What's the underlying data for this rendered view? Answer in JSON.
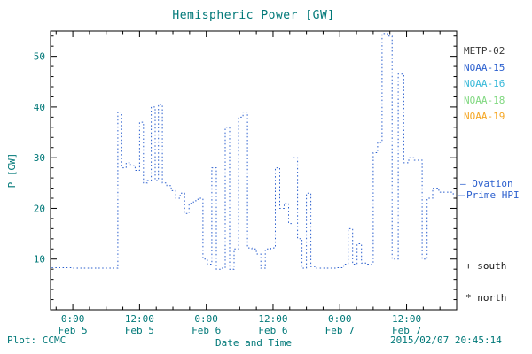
{
  "title": "Hemispheric Power [GW]",
  "colors": {
    "teal": "#007878",
    "axis": "#000000",
    "line": "#2b5fce"
  },
  "legend": [
    {
      "label": "METP-02",
      "color": "#3a3a3a"
    },
    {
      "label": "NOAA-15",
      "color": "#2b5fce"
    },
    {
      "label": "NOAA-16",
      "color": "#35b8d8"
    },
    {
      "label": "NOAA-18",
      "color": "#7fd87f"
    },
    {
      "label": "NOAA-19",
      "color": "#f5a623"
    }
  ],
  "annotations": {
    "ovation": [
      "– Ovation",
      "Prime HPI"
    ],
    "south": "+ south",
    "north": "* north"
  },
  "footer": {
    "left": "Plot: CCMC",
    "timestamp": "2015/02/07 20:45:14"
  },
  "chart_data": {
    "type": "line",
    "style": "dotted-step",
    "title": "Hemispheric Power [GW]",
    "xlabel": "Date and Time",
    "ylabel": "P [GW]",
    "xlim": [
      -4,
      69
    ],
    "ylim": [
      0,
      55
    ],
    "yticks": [
      10,
      20,
      30,
      40,
      50
    ],
    "y_minor_step": 2,
    "x_minor_step": 3,
    "xticks": [
      {
        "t": 0,
        "time": "0:00",
        "date": "Feb 5"
      },
      {
        "t": 12,
        "time": "12:00",
        "date": "Feb 5"
      },
      {
        "t": 24,
        "time": "0:00",
        "date": "Feb 6"
      },
      {
        "t": 36,
        "time": "12:00",
        "date": "Feb 6"
      },
      {
        "t": 48,
        "time": "0:00",
        "date": "Feb 7"
      },
      {
        "t": 60,
        "time": "12:00",
        "date": "Feb 7"
      }
    ],
    "series": [
      {
        "name": "Ovation Prime HPI",
        "color": "#2b5fce",
        "units_x_hours_from": "Feb 5 00:00",
        "points": [
          [
            -3.8,
            8.3
          ],
          [
            0,
            8.2
          ],
          [
            3,
            8.2
          ],
          [
            7.5,
            8.2
          ],
          [
            8.1,
            39
          ],
          [
            8.8,
            28
          ],
          [
            9.6,
            29
          ],
          [
            10.4,
            28.5
          ],
          [
            11.2,
            27.5
          ],
          [
            12.0,
            37
          ],
          [
            12.7,
            25
          ],
          [
            13.4,
            25.5
          ],
          [
            14.1,
            40
          ],
          [
            14.8,
            25.5
          ],
          [
            15.4,
            40.5
          ],
          [
            16.1,
            25
          ],
          [
            16.9,
            24.5
          ],
          [
            17.7,
            23.5
          ],
          [
            18.5,
            22
          ],
          [
            19.3,
            23
          ],
          [
            20.1,
            19
          ],
          [
            20.9,
            21
          ],
          [
            21.7,
            21.5
          ],
          [
            22.5,
            22
          ],
          [
            23.4,
            10
          ],
          [
            24.2,
            9
          ],
          [
            25.0,
            28
          ],
          [
            25.8,
            8
          ],
          [
            26.6,
            8.2
          ],
          [
            27.4,
            36
          ],
          [
            28.2,
            8
          ],
          [
            29.0,
            12
          ],
          [
            29.8,
            38
          ],
          [
            30.6,
            39
          ],
          [
            31.4,
            12.2
          ],
          [
            32.2,
            12
          ],
          [
            33.0,
            11
          ],
          [
            33.8,
            8.2
          ],
          [
            34.6,
            12
          ],
          [
            35.6,
            12.2
          ],
          [
            36.4,
            28
          ],
          [
            37.2,
            20
          ],
          [
            38.0,
            21
          ],
          [
            38.8,
            17
          ],
          [
            39.6,
            30
          ],
          [
            40.4,
            14
          ],
          [
            41.2,
            8.2
          ],
          [
            42.0,
            23
          ],
          [
            42.8,
            8.5
          ],
          [
            43.6,
            8.2
          ],
          [
            45.5,
            8.2
          ],
          [
            47.5,
            8.3
          ],
          [
            48.7,
            9
          ],
          [
            49.5,
            16
          ],
          [
            50.3,
            9
          ],
          [
            51.1,
            13
          ],
          [
            51.9,
            9.2
          ],
          [
            53.0,
            9
          ],
          [
            54.0,
            31
          ],
          [
            54.8,
            33
          ],
          [
            55.6,
            54.5
          ],
          [
            56.6,
            54
          ],
          [
            57.4,
            10
          ],
          [
            58.5,
            46.5
          ],
          [
            59.5,
            29
          ],
          [
            60.4,
            30
          ],
          [
            61.4,
            29.5
          ],
          [
            62.8,
            10
          ],
          [
            63.7,
            22
          ],
          [
            64.7,
            24
          ],
          [
            65.8,
            23.2
          ],
          [
            68.4,
            22.5
          ]
        ]
      }
    ]
  }
}
